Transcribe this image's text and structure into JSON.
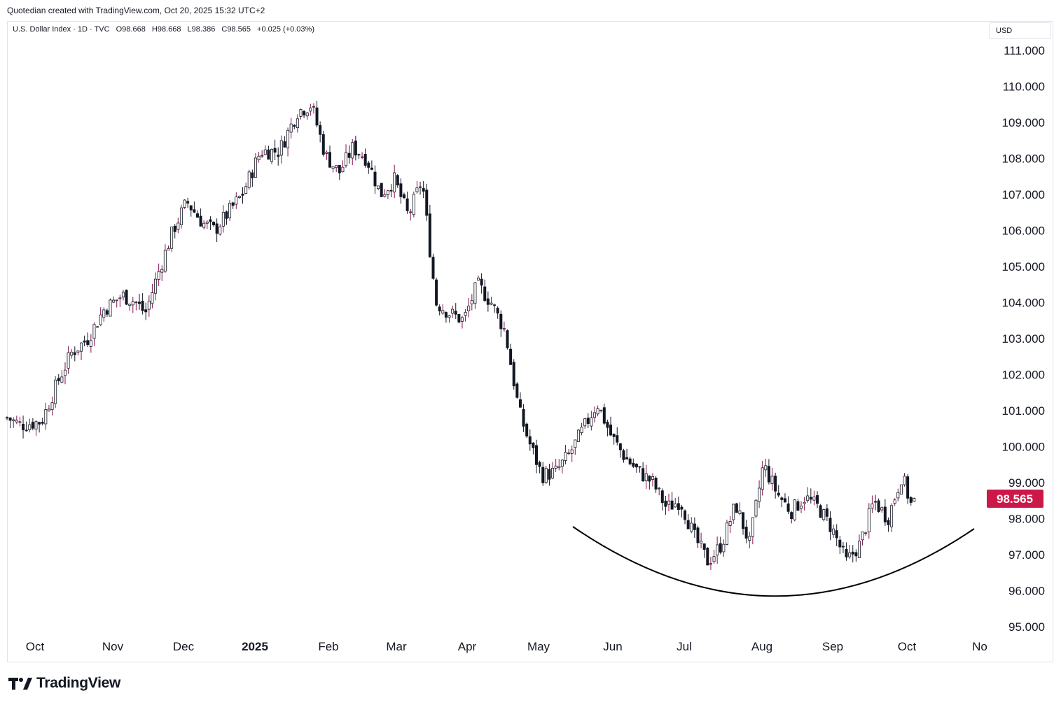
{
  "header": {
    "note": "Quotedian created with TradingView.com, Oct 20, 2025 15:32 UTC+2"
  },
  "legend": {
    "symbol": "U.S. Dollar Index · 1D · TVC",
    "open": "O98.668",
    "high": "H98.668",
    "low": "L98.386",
    "close": "C98.565",
    "change": "+0.025 (+0.03%)"
  },
  "currency": "USD",
  "footer": {
    "brand": "TradingView"
  },
  "colors": {
    "up": "#ffffff",
    "down": "#131722",
    "wick_up": "#880e4f",
    "wick_down": "#131722",
    "last_price_bg": "#cc1848",
    "grid": "#f0f3fa"
  },
  "chart_data": {
    "type": "candlestick",
    "title": "",
    "ylim": [
      95,
      111
    ],
    "y_ticks": [
      "111.000",
      "110.000",
      "109.000",
      "108.000",
      "107.000",
      "106.000",
      "105.000",
      "104.000",
      "103.000",
      "102.000",
      "101.000",
      "100.000",
      "99.000",
      "98.000",
      "97.000",
      "96.000",
      "95.000"
    ],
    "x_ticks": [
      {
        "label": "Oct",
        "bold": false
      },
      {
        "label": "Nov",
        "bold": false
      },
      {
        "label": "Dec",
        "bold": false
      },
      {
        "label": "2025",
        "bold": true
      },
      {
        "label": "Feb",
        "bold": false
      },
      {
        "label": "Mar",
        "bold": false
      },
      {
        "label": "Apr",
        "bold": false
      },
      {
        "label": "May",
        "bold": false
      },
      {
        "label": "Jun",
        "bold": false
      },
      {
        "label": "Jul",
        "bold": false
      },
      {
        "label": "Aug",
        "bold": false
      },
      {
        "label": "Sep",
        "bold": false
      },
      {
        "label": "Oct",
        "bold": false
      },
      {
        "label": "No",
        "bold": false
      }
    ],
    "last_price": 98.565,
    "last_price_label": "98.565",
    "price_path": [
      [
        0,
        100.8
      ],
      [
        6,
        100.6
      ],
      [
        15,
        100.7
      ],
      [
        22,
        101.8
      ],
      [
        28,
        102.6
      ],
      [
        35,
        103.0
      ],
      [
        42,
        103.8
      ],
      [
        50,
        104.2
      ],
      [
        56,
        104.0
      ],
      [
        60,
        103.7
      ],
      [
        66,
        104.9
      ],
      [
        72,
        106.0
      ],
      [
        78,
        106.8
      ],
      [
        85,
        106.2
      ],
      [
        90,
        106.0
      ],
      [
        96,
        106.5
      ],
      [
        102,
        107.0
      ],
      [
        110,
        108.2
      ],
      [
        118,
        108.2
      ],
      [
        126,
        109.3
      ],
      [
        132,
        109.5
      ],
      [
        138,
        108.1
      ],
      [
        144,
        107.6
      ],
      [
        150,
        108.3
      ],
      [
        156,
        108.0
      ],
      [
        162,
        107.0
      ],
      [
        168,
        107.4
      ],
      [
        174,
        106.4
      ],
      [
        180,
        107.4
      ],
      [
        186,
        104.0
      ],
      [
        192,
        103.7
      ],
      [
        198,
        103.5
      ],
      [
        204,
        104.5
      ],
      [
        210,
        104.0
      ],
      [
        216,
        103.2
      ],
      [
        222,
        101.0
      ],
      [
        226,
        100.2
      ],
      [
        232,
        99.2
      ],
      [
        238,
        99.3
      ],
      [
        244,
        99.8
      ],
      [
        250,
        100.5
      ],
      [
        256,
        101.2
      ],
      [
        262,
        100.3
      ],
      [
        268,
        99.7
      ],
      [
        274,
        99.3
      ],
      [
        280,
        99.0
      ],
      [
        286,
        98.3
      ],
      [
        292,
        98.5
      ],
      [
        298,
        97.5
      ],
      [
        304,
        96.8
      ],
      [
        310,
        97.3
      ],
      [
        316,
        98.4
      ],
      [
        322,
        97.3
      ],
      [
        328,
        99.5
      ],
      [
        334,
        98.7
      ],
      [
        340,
        98.2
      ],
      [
        346,
        98.6
      ],
      [
        352,
        98.3
      ],
      [
        358,
        97.7
      ],
      [
        364,
        96.8
      ],
      [
        370,
        97.3
      ],
      [
        376,
        98.5
      ],
      [
        382,
        98.0
      ],
      [
        388,
        99.2
      ],
      [
        392,
        98.4
      ],
      [
        394,
        98.565
      ]
    ],
    "total_days": 410,
    "reference_curve": "rounding bottom arc"
  }
}
